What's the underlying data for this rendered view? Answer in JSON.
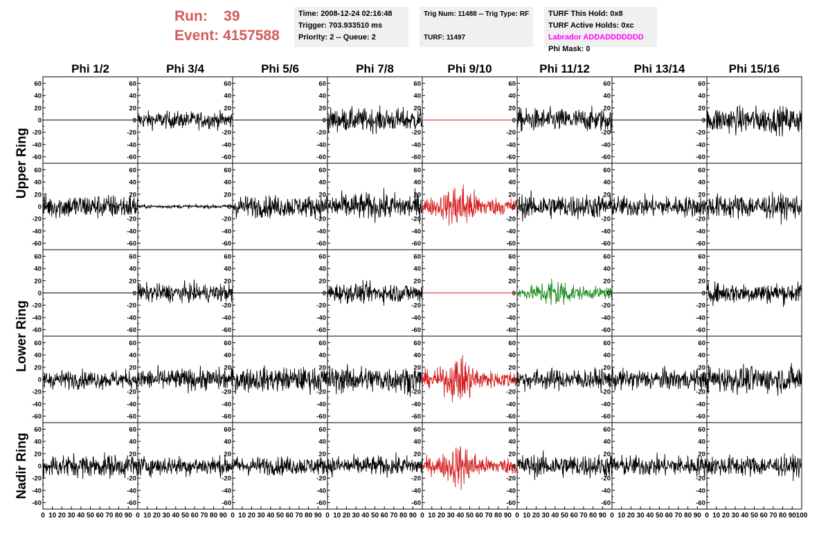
{
  "header": {
    "run_label": "Run:",
    "run_value": "39",
    "event_label": "Event:",
    "event_value": "4157588",
    "time": "Time: 2008-12-24 02:16:48",
    "trigger": "Trigger: 703.933510 ms",
    "priority": "Priority: 2 -- Queue: 2",
    "trig_num": "Trig Num: 11488 -- Trig Type: RF",
    "turf": "TURF: 11497",
    "turf_this_hold": "TURF This Hold: 0x8",
    "turf_active_holds": "TURF Active Holds: 0xc",
    "labrador": "Labrador ADDADDDDDDD",
    "phi_mask": "Phi Mask: 0"
  },
  "chart_data": {
    "type": "line",
    "columns": [
      "Phi 1/2",
      "Phi 3/4",
      "Phi 5/6",
      "Phi 7/8",
      "Phi 9/10",
      "Phi 11/12",
      "Phi 13/14",
      "Phi 15/16"
    ],
    "ring_labels": [
      "Upper Ring",
      "Lower Ring",
      "Nadir Ring"
    ],
    "xlim": [
      0,
      100
    ],
    "ylim": [
      -65,
      65
    ],
    "xticks": [
      0,
      10,
      20,
      30,
      40,
      50,
      60,
      70,
      80,
      90,
      100
    ],
    "yticks": [
      -60,
      -40,
      -20,
      0,
      20,
      40,
      60
    ],
    "colors": {
      "normal": "#000000",
      "triggered": "#d42020",
      "highlight": "#1a8a1a"
    },
    "traces": [
      [
        {
          "state": "flat",
          "amp": 0,
          "color": "normal"
        },
        {
          "state": "noise",
          "amp": 14,
          "color": "normal"
        },
        {
          "state": "flat",
          "amp": 0,
          "color": "normal"
        },
        {
          "state": "noise",
          "amp": 19,
          "color": "normal"
        },
        {
          "state": "flat",
          "amp": 0,
          "color": "triggered"
        },
        {
          "state": "noise",
          "amp": 19,
          "color": "normal"
        },
        {
          "state": "flat",
          "amp": 0,
          "color": "normal"
        },
        {
          "state": "noise",
          "amp": 22,
          "color": "normal"
        }
      ],
      [
        {
          "state": "noise",
          "amp": 20,
          "color": "normal"
        },
        {
          "state": "noise",
          "amp": 3,
          "color": "normal"
        },
        {
          "state": "noise",
          "amp": 18,
          "color": "normal"
        },
        {
          "state": "noise",
          "amp": 22,
          "color": "normal"
        },
        {
          "state": "pulse",
          "amp": 52,
          "color": "triggered"
        },
        {
          "state": "noise",
          "amp": 20,
          "color": "normal"
        },
        {
          "state": "noise",
          "amp": 17,
          "color": "normal"
        },
        {
          "state": "noise",
          "amp": 20,
          "color": "normal"
        }
      ],
      [
        {
          "state": "flat",
          "amp": 0,
          "color": "normal"
        },
        {
          "state": "noise",
          "amp": 15,
          "color": "normal"
        },
        {
          "state": "flat",
          "amp": 0,
          "color": "normal"
        },
        {
          "state": "noise",
          "amp": 16,
          "color": "normal"
        },
        {
          "state": "flat",
          "amp": 0,
          "color": "triggered"
        },
        {
          "state": "pulse",
          "amp": 36,
          "color": "highlight"
        },
        {
          "state": "flat",
          "amp": 0,
          "color": "normal"
        },
        {
          "state": "noise",
          "amp": 17,
          "color": "normal"
        }
      ],
      [
        {
          "state": "noise",
          "amp": 15,
          "color": "normal"
        },
        {
          "state": "noise",
          "amp": 18,
          "color": "normal"
        },
        {
          "state": "noise",
          "amp": 20,
          "color": "normal"
        },
        {
          "state": "noise",
          "amp": 22,
          "color": "normal"
        },
        {
          "state": "pulse",
          "amp": 50,
          "color": "triggered"
        },
        {
          "state": "noise",
          "amp": 17,
          "color": "normal"
        },
        {
          "state": "noise",
          "amp": 17,
          "color": "normal"
        },
        {
          "state": "noise",
          "amp": 22,
          "color": "normal"
        }
      ],
      [
        {
          "state": "noise",
          "amp": 19,
          "color": "normal"
        },
        {
          "state": "noise",
          "amp": 16,
          "color": "normal"
        },
        {
          "state": "noise",
          "amp": 15,
          "color": "normal"
        },
        {
          "state": "noise",
          "amp": 16,
          "color": "normal"
        },
        {
          "state": "pulse",
          "amp": 48,
          "color": "triggered"
        },
        {
          "state": "noise",
          "amp": 19,
          "color": "normal"
        },
        {
          "state": "noise",
          "amp": 17,
          "color": "normal"
        },
        {
          "state": "noise",
          "amp": 17,
          "color": "normal"
        }
      ]
    ]
  }
}
